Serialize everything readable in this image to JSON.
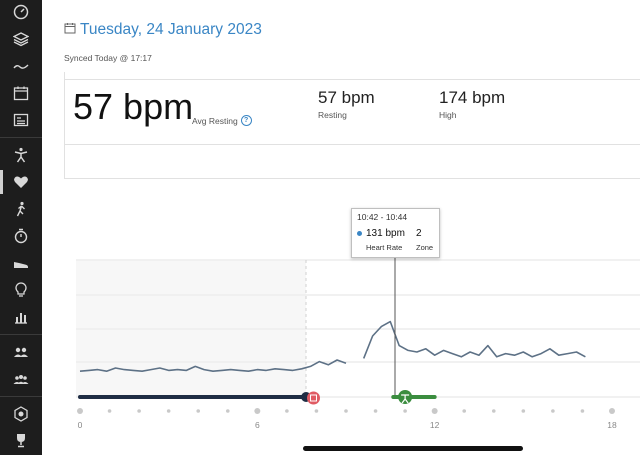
{
  "header": {
    "date": "Tuesday, 24 January 2023",
    "synced": "Synced Today @ 17:17"
  },
  "summary": {
    "big_value": "57 bpm",
    "big_label": "Avg Resting",
    "help": "?",
    "stats": [
      {
        "value": "57 bpm",
        "label": "Resting"
      },
      {
        "value": "174 bpm",
        "label": "High"
      }
    ]
  },
  "tooltip": {
    "time": "10:42 - 10:44",
    "bpm": "131 bpm",
    "zone": "2",
    "bpm_label": "Heart Rate",
    "zone_label": "Zone"
  },
  "colors": {
    "accent": "#3a86c5",
    "sidebar": "#1d1d1d",
    "line": "#5d7186",
    "sleep": "#1f2d44",
    "activity": "#3b8d3f",
    "alarm": "#e05b63"
  },
  "chart_data": {
    "type": "line",
    "x_unit": "hour of day",
    "xticks": [
      "0",
      "6",
      "12",
      "18"
    ],
    "xlim": [
      0,
      18
    ],
    "series": [
      {
        "x": [
          0.0,
          0.3,
          0.6,
          0.9,
          1.2,
          1.5,
          1.8,
          2.1,
          2.4,
          2.7,
          3.0,
          3.3,
          3.6,
          3.9,
          4.2,
          4.5,
          4.8,
          5.1,
          5.4,
          5.7,
          6.0,
          6.3,
          6.6,
          6.9,
          7.2,
          7.5,
          7.8,
          8.1,
          8.4,
          8.7,
          9.0,
          9.3,
          9.6,
          9.9,
          10.2,
          10.5,
          10.8,
          11.1,
          11.4,
          11.7,
          12.0,
          12.3,
          12.6,
          12.9,
          13.2,
          13.5,
          13.8,
          14.1,
          14.4,
          14.7,
          15.0,
          15.3,
          15.6,
          15.9,
          16.2,
          16.5,
          16.8,
          17.1
        ],
        "y": [
          56,
          57,
          58,
          56,
          60,
          58,
          57,
          56,
          58,
          60,
          57,
          58,
          57,
          62,
          58,
          56,
          57,
          58,
          57,
          56,
          58,
          57,
          59,
          58,
          57,
          59,
          62,
          68,
          64,
          70,
          66,
          null,
          72,
          100,
          112,
          118,
          88,
          82,
          80,
          84,
          76,
          82,
          78,
          74,
          80,
          76,
          88,
          74,
          78,
          76,
          80,
          74,
          78,
          84,
          76,
          78,
          80,
          74
        ],
        "segments": [
          [
            0,
            30
          ],
          [
            32,
            57
          ]
        ],
        "color": "#5d7186"
      }
    ],
    "highlight": {
      "x": 10.7,
      "y": 131
    },
    "bands": [
      {
        "kind": "sleep",
        "x0": 0,
        "x1": 7.8
      },
      {
        "kind": "activity",
        "x0": 10.6,
        "x1": 12.0
      }
    ]
  }
}
